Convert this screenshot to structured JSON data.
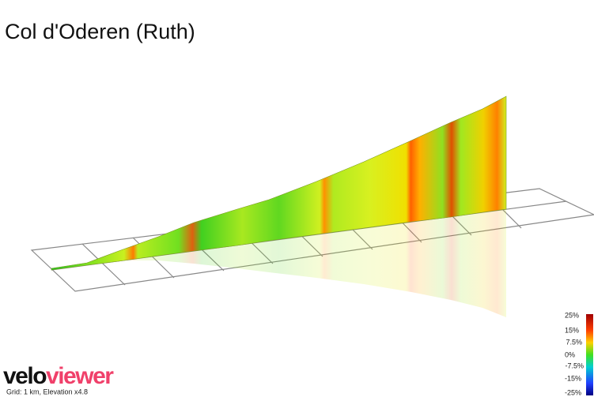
{
  "header": {
    "title": "Col d'Oderen (Ruth)"
  },
  "legend": {
    "labels": [
      "25%",
      "15%",
      "7.5%",
      "0%",
      "-7.5%",
      "-15%",
      "-25%"
    ]
  },
  "footer": {
    "logo_part1": "velo",
    "logo_part2": "viewer",
    "note": "Grid: 1 km, Elevation x4.8"
  }
}
